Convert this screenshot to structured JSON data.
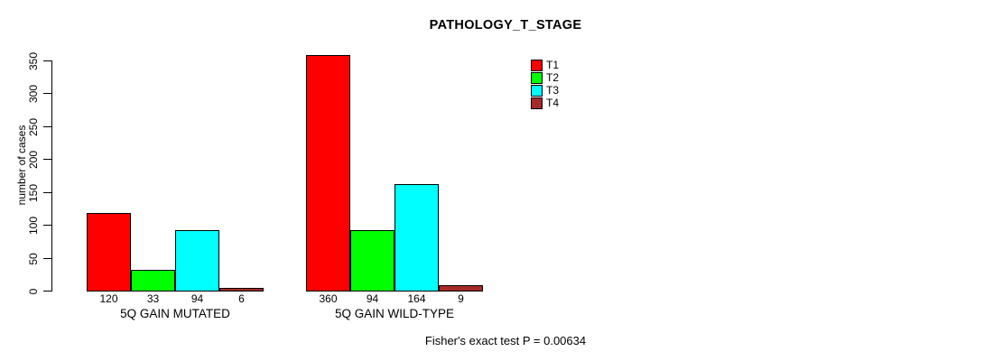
{
  "chart_data": {
    "type": "bar",
    "title": "PATHOLOGY_T_STAGE",
    "ylabel": "number of cases",
    "xlabel": "",
    "ylim": [
      0,
      350
    ],
    "yticks": [
      0,
      50,
      100,
      150,
      200,
      250,
      300,
      350
    ],
    "grid": false,
    "legend_position": "top-right",
    "categories": [
      "5Q GAIN MUTATED",
      "5Q GAIN WILD-TYPE"
    ],
    "series": [
      {
        "name": "T1",
        "color": "#ff0000",
        "values": [
          120,
          360
        ]
      },
      {
        "name": "T2",
        "color": "#00ff00",
        "values": [
          33,
          94
        ]
      },
      {
        "name": "T3",
        "color": "#00ffff",
        "values": [
          94,
          164
        ]
      },
      {
        "name": "T4",
        "color": "#a52a2a",
        "values": [
          6,
          9
        ]
      }
    ],
    "bar_value_labels_shown": true,
    "annotation": "Fisher's exact test P = 0.00634"
  },
  "colors": {
    "background": "#ffffff",
    "axis": "#000000",
    "text": "#000000"
  }
}
